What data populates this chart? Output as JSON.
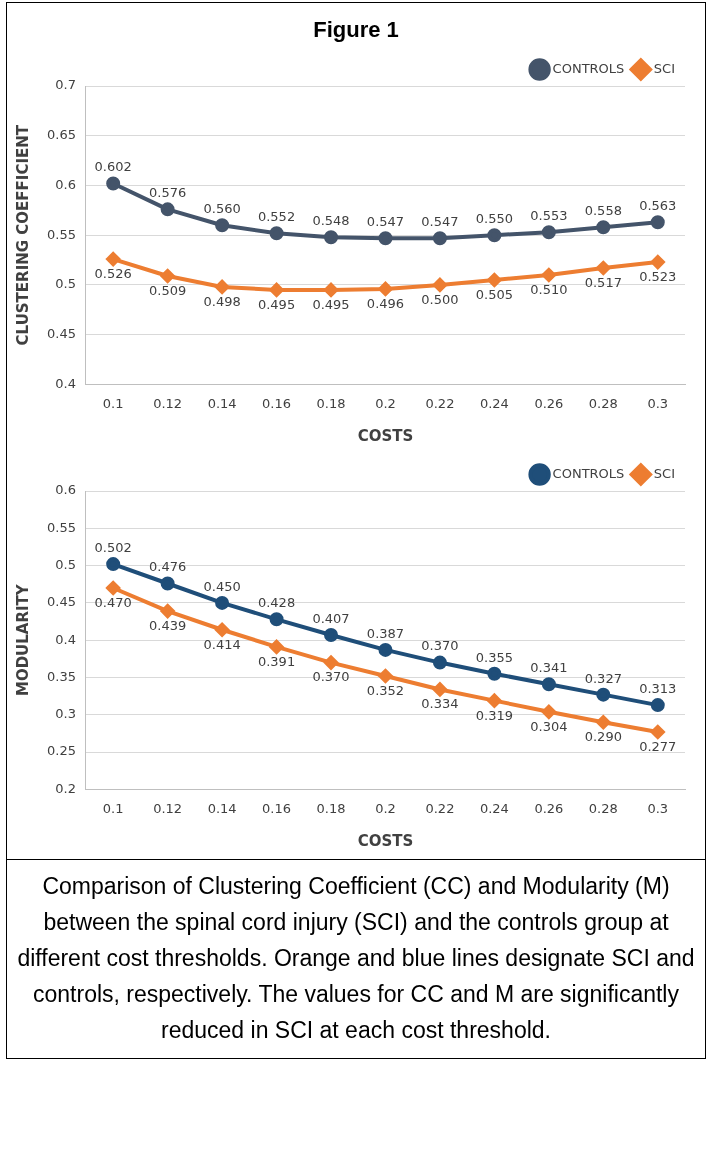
{
  "chart_data": [
    {
      "type": "line",
      "title": "Figure 1",
      "ylabel": "CLUSTERING COEFFICIENT",
      "xlabel": "COSTS",
      "categories": [
        "0.1",
        "0.12",
        "0.14",
        "0.16",
        "0.18",
        "0.2",
        "0.22",
        "0.24",
        "0.26",
        "0.28",
        "0.3"
      ],
      "series": [
        {
          "name": "CONTROLS",
          "color": "#44546a",
          "marker": "circle",
          "values": [
            0.602,
            0.576,
            0.56,
            0.552,
            0.548,
            0.547,
            0.547,
            0.55,
            0.553,
            0.558,
            0.563
          ],
          "value_labels": [
            "0.602",
            "0.576",
            "0.560",
            "0.552",
            "0.548",
            "0.547",
            "0.547",
            "0.550",
            "0.553",
            "0.558",
            "0.563"
          ]
        },
        {
          "name": "SCI",
          "color": "#ed7d31",
          "marker": "diamond",
          "values": [
            0.526,
            0.509,
            0.498,
            0.495,
            0.495,
            0.496,
            0.5,
            0.505,
            0.51,
            0.517,
            0.523
          ],
          "value_labels": [
            "0.526",
            "0.509",
            "0.498",
            "0.495",
            "0.495",
            "0.496",
            "0.500",
            "0.505",
            "0.510",
            "0.517",
            "0.523"
          ]
        }
      ],
      "ylim": [
        0.4,
        0.7
      ],
      "yticks": [
        0.4,
        0.45,
        0.5,
        0.55,
        0.6,
        0.65,
        0.7
      ],
      "grid": "y",
      "legend": "top right"
    },
    {
      "type": "line",
      "ylabel": "MODULARITY",
      "xlabel": "COSTS",
      "categories": [
        "0.1",
        "0.12",
        "0.14",
        "0.16",
        "0.18",
        "0.2",
        "0.22",
        "0.24",
        "0.26",
        "0.28",
        "0.3"
      ],
      "series": [
        {
          "name": "CONTROLS",
          "color": "#1f4e79",
          "marker": "circle",
          "values": [
            0.502,
            0.476,
            0.45,
            0.428,
            0.407,
            0.387,
            0.37,
            0.355,
            0.341,
            0.327,
            0.313
          ],
          "value_labels": [
            "0.502",
            "0.476",
            "0.450",
            "0.428",
            "0.407",
            "0.387",
            "0.370",
            "0.355",
            "0.341",
            "0.327",
            "0.313"
          ]
        },
        {
          "name": "SCI",
          "color": "#ed7d31",
          "marker": "diamond",
          "values": [
            0.47,
            0.439,
            0.414,
            0.391,
            0.37,
            0.352,
            0.334,
            0.319,
            0.304,
            0.29,
            0.277
          ],
          "value_labels": [
            "0.470",
            "0.439",
            "0.414",
            "0.391",
            "0.370",
            "0.352",
            "0.334",
            "0.319",
            "0.304",
            "0.290",
            "0.277"
          ]
        }
      ],
      "ylim": [
        0.2,
        0.6
      ],
      "yticks": [
        0.2,
        0.25,
        0.3,
        0.35,
        0.4,
        0.45,
        0.5,
        0.55,
        0.6
      ],
      "grid": "y",
      "legend": "top right",
      "annotations": [
        "Comparison of Clustering Coefficient (CC) and Modularity (M) between the spinal cord injury (SCI) and the controls group at different cost thresholds. Orange and blue lines designate SCI and controls, respectively. The values for CC and M are significantly reduced in SCI at each cost threshold."
      ]
    }
  ]
}
